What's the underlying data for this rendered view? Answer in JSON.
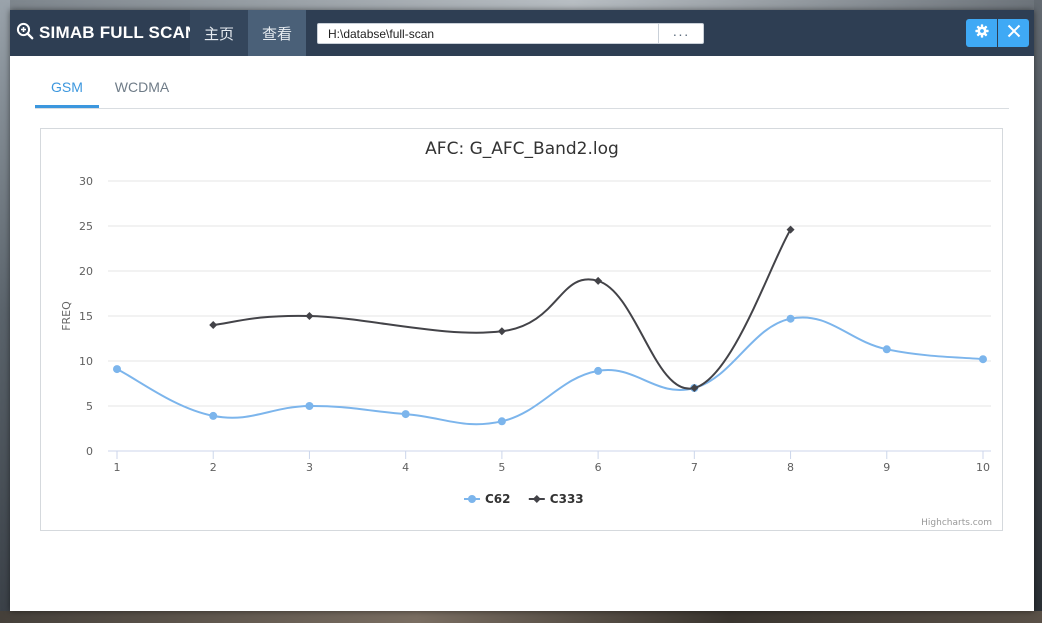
{
  "app": {
    "title": "SIMAB FULL SCAN"
  },
  "nav": {
    "home_label": "主页",
    "view_label": "查看"
  },
  "path": {
    "value": "H:\\databse\\full-scan",
    "browse_label": "···"
  },
  "tabs": [
    {
      "label": "GSM",
      "active": true
    },
    {
      "label": "WCDMA",
      "active": false
    }
  ],
  "chart_data": {
    "type": "line",
    "title": "AFC: G_AFC_Band2.log",
    "xlabel": "",
    "ylabel": "FREQ",
    "x": [
      1,
      2,
      3,
      4,
      5,
      6,
      7,
      8,
      9,
      10
    ],
    "yticks": [
      0,
      5,
      10,
      15,
      20,
      25,
      30
    ],
    "ylim": [
      0,
      30
    ],
    "grid": true,
    "legend": "bottom-center",
    "series": [
      {
        "name": "C62",
        "color": "#7cb5ec",
        "marker": "circle",
        "x": [
          1,
          2,
          3,
          4,
          5,
          6,
          7,
          8,
          9,
          10
        ],
        "values": [
          9.1,
          3.9,
          5.0,
          4.1,
          3.3,
          8.9,
          7.0,
          14.7,
          11.3,
          10.2
        ]
      },
      {
        "name": "C333",
        "color": "#434348",
        "marker": "diamond",
        "x": [
          2,
          3,
          5,
          6,
          7,
          8
        ],
        "values": [
          14.0,
          15.0,
          13.3,
          18.9,
          7.0,
          24.6
        ]
      }
    ],
    "credits": "Highcharts.com"
  },
  "colors": {
    "titlebar": "#2e3e53",
    "accent": "#3fa9f5",
    "tab_active": "#3c97de"
  }
}
